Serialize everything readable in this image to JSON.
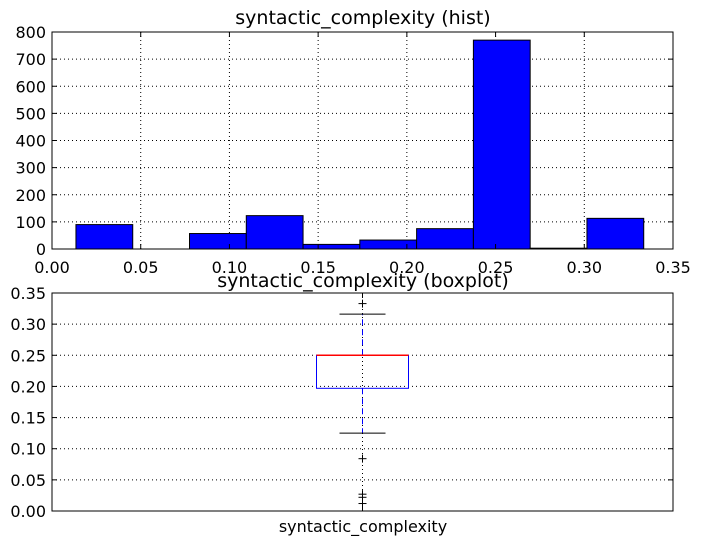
{
  "chart_data": [
    {
      "type": "bar",
      "title": "syntactic_complexity (hist)",
      "bins": [
        {
          "x0": 0.0135,
          "x1": 0.0455,
          "value": 90
        },
        {
          "x0": 0.0455,
          "x1": 0.0775,
          "value": 0
        },
        {
          "x0": 0.0775,
          "x1": 0.1095,
          "value": 57
        },
        {
          "x0": 0.1095,
          "x1": 0.1415,
          "value": 123
        },
        {
          "x0": 0.1415,
          "x1": 0.1735,
          "value": 17
        },
        {
          "x0": 0.1735,
          "x1": 0.2055,
          "value": 33
        },
        {
          "x0": 0.2055,
          "x1": 0.2375,
          "value": 75
        },
        {
          "x0": 0.2375,
          "x1": 0.2695,
          "value": 770
        },
        {
          "x0": 0.2695,
          "x1": 0.3015,
          "value": 3
        },
        {
          "x0": 0.3015,
          "x1": 0.3335,
          "value": 113
        }
      ],
      "xlim": [
        0.0,
        0.35
      ],
      "ylim": [
        0,
        800
      ],
      "xticks": [
        "0.00",
        "0.05",
        "0.10",
        "0.15",
        "0.20",
        "0.25",
        "0.30",
        "0.35"
      ],
      "yticks": [
        "0",
        "100",
        "200",
        "300",
        "400",
        "500",
        "600",
        "700",
        "800"
      ],
      "grid": true,
      "colors": {
        "bar": "#0000ff",
        "edge": "#000000"
      }
    },
    {
      "type": "boxplot",
      "title": "syntactic_complexity (boxplot)",
      "category": "syntactic_complexity",
      "stats": {
        "whisker_low": 0.125,
        "q1": 0.197,
        "median": 0.25,
        "q3": 0.25,
        "whisker_high": 0.316
      },
      "fliers": [
        0.333,
        0.084,
        0.027,
        0.022,
        0.012
      ],
      "ylim": [
        0.0,
        0.35
      ],
      "yticks": [
        "0.00",
        "0.05",
        "0.10",
        "0.15",
        "0.20",
        "0.25",
        "0.30",
        "0.35"
      ],
      "grid": true,
      "colors": {
        "box": "#0000ff",
        "median": "#ff0000",
        "whisker": "#0000ff",
        "cap": "#000000",
        "flier": "#000000"
      }
    }
  ]
}
